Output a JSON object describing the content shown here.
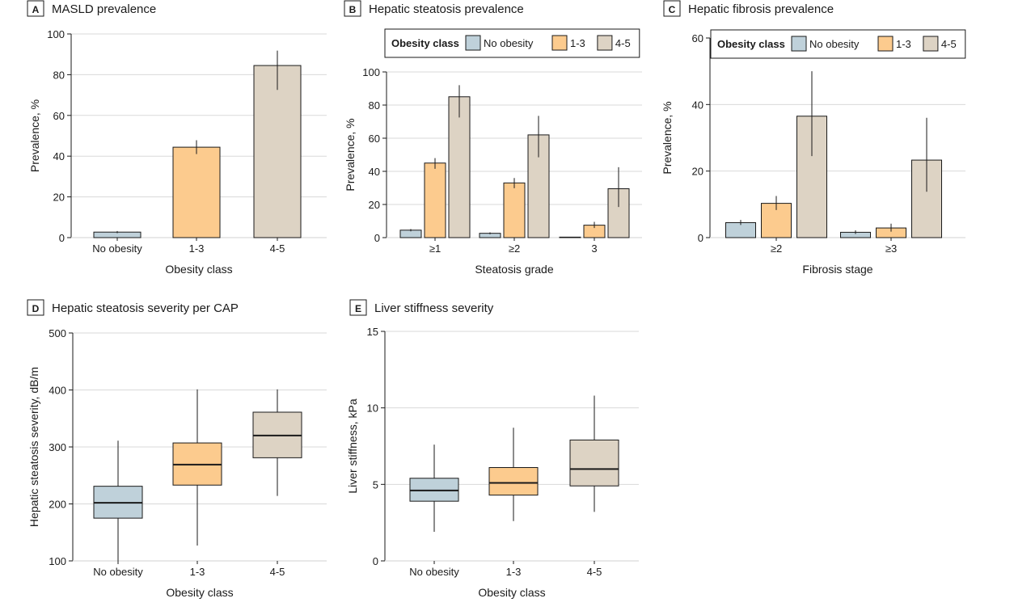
{
  "colors": {
    "no_obesity": "#bfd1da",
    "class_1_3": "#fccb8e",
    "class_4_5": "#ddd3c4",
    "grid": "#d9d9d9",
    "stroke": "#1a1a1a"
  },
  "chart_data": [
    {
      "panel": "A",
      "type": "bar",
      "title": "MASLD prevalence",
      "categories": [
        "No obesity",
        "1-3",
        "4-5"
      ],
      "values": [
        2.7,
        44.4,
        84.5
      ],
      "err_low": [
        2.2,
        41.0,
        72.5
      ],
      "err_high": [
        3.2,
        47.8,
        91.8
      ],
      "xlabel": "Obesity class",
      "ylabel": "Prevalence, %",
      "ylim": [
        0,
        100
      ],
      "yticks": [
        0,
        20,
        40,
        60,
        80,
        100
      ],
      "grid": true
    },
    {
      "panel": "B",
      "type": "bar",
      "title": "Hepatic steatosis prevalence",
      "categories": [
        "≥1",
        "≥2",
        "3"
      ],
      "legend_title": "Obesity class",
      "legend_position": "top",
      "series": [
        {
          "name": "No obesity",
          "values": [
            4.5,
            2.6,
            0.3
          ],
          "err_low": [
            3.8,
            2.0,
            0.1
          ],
          "err_high": [
            5.2,
            3.2,
            0.5
          ]
        },
        {
          "name": "1-3",
          "values": [
            45,
            33,
            7.5
          ],
          "err_low": [
            41.5,
            29.8,
            5.8
          ],
          "err_high": [
            48,
            36,
            9.5
          ]
        },
        {
          "name": "4-5",
          "values": [
            85,
            62,
            29.5
          ],
          "err_low": [
            72.5,
            48.5,
            18.5
          ],
          "err_high": [
            92,
            73.5,
            42.5
          ]
        }
      ],
      "xlabel": "Steatosis grade",
      "ylabel": "Prevalence, %",
      "ylim": [
        0,
        100
      ],
      "yticks": [
        0,
        20,
        40,
        60,
        80,
        100
      ],
      "grid": true
    },
    {
      "panel": "C",
      "type": "bar",
      "title": "Hepatic fibrosis prevalence",
      "categories": [
        "≥2",
        "≥3"
      ],
      "legend_title": "Obesity class",
      "legend_position": "top",
      "series": [
        {
          "name": "No obesity",
          "values": [
            4.5,
            1.6
          ],
          "err_low": [
            3.8,
            1.1
          ],
          "err_high": [
            5.3,
            2.2
          ]
        },
        {
          "name": "1-3",
          "values": [
            10.3,
            2.9
          ],
          "err_low": [
            8.3,
            1.8
          ],
          "err_high": [
            12.5,
            4.2
          ]
        },
        {
          "name": "4-5",
          "values": [
            36.5,
            23.3
          ],
          "err_low": [
            24.5,
            13.8
          ],
          "err_high": [
            50,
            36
          ]
        }
      ],
      "xlabel": "Fibrosis stage",
      "ylabel": "Prevalence, %",
      "ylim": [
        0,
        60
      ],
      "yticks": [
        0,
        20,
        40,
        60
      ],
      "grid": true
    },
    {
      "panel": "D",
      "type": "box",
      "title": "Hepatic steatosis severity per CAP",
      "categories": [
        "No obesity",
        "1-3",
        "4-5"
      ],
      "boxes": [
        {
          "whisker_low": 100,
          "q1": 175,
          "median": 202,
          "q3": 231,
          "whisker_high": 311
        },
        {
          "whisker_low": 127,
          "q1": 233,
          "median": 269,
          "q3": 307,
          "whisker_high": 401
        },
        {
          "whisker_low": 214,
          "q1": 281,
          "median": 320,
          "q3": 361,
          "whisker_high": 401
        }
      ],
      "xlabel": "Obesity class",
      "ylabel": "Hepatic steatosis severity, dB/m",
      "ylim": [
        100,
        500
      ],
      "yticks": [
        100,
        200,
        300,
        400,
        500
      ],
      "grid": true
    },
    {
      "panel": "E",
      "type": "box",
      "title": "Liver stiffness severity",
      "categories": [
        "No obesity",
        "1-3",
        "4-5"
      ],
      "boxes": [
        {
          "whisker_low": 1.9,
          "q1": 3.9,
          "median": 4.6,
          "q3": 5.4,
          "whisker_high": 7.6
        },
        {
          "whisker_low": 2.6,
          "q1": 4.3,
          "median": 5.1,
          "q3": 6.1,
          "whisker_high": 8.7
        },
        {
          "whisker_low": 3.2,
          "q1": 4.9,
          "median": 6.0,
          "q3": 7.9,
          "whisker_high": 10.8
        }
      ],
      "xlabel": "Obesity class",
      "ylabel": "Liver stiffness, kPa",
      "ylim": [
        0,
        15
      ],
      "yticks": [
        0,
        5,
        10,
        15
      ],
      "grid": true
    }
  ]
}
